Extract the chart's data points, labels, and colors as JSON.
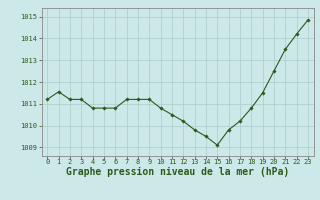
{
  "x": [
    0,
    1,
    2,
    3,
    4,
    5,
    6,
    7,
    8,
    9,
    10,
    11,
    12,
    13,
    14,
    15,
    16,
    17,
    18,
    19,
    20,
    21,
    22,
    23
  ],
  "y": [
    1011.2,
    1011.55,
    1011.2,
    1011.2,
    1010.8,
    1010.8,
    1010.8,
    1011.2,
    1011.2,
    1011.2,
    1010.8,
    1010.5,
    1010.2,
    1009.8,
    1009.5,
    1009.1,
    1009.8,
    1010.2,
    1010.8,
    1011.5,
    1012.5,
    1013.5,
    1014.2,
    1014.85
  ],
  "line_color": "#2d5a1b",
  "marker_color": "#2d5a1b",
  "bg_color": "#cce8e8",
  "grid_color": "#aacccc",
  "title": "Graphe pression niveau de la mer (hPa)",
  "ylim_min": 1008.6,
  "ylim_max": 1015.4,
  "yticks": [
    1009,
    1010,
    1011,
    1012,
    1013,
    1014,
    1015
  ],
  "xticks": [
    0,
    1,
    2,
    3,
    4,
    5,
    6,
    7,
    8,
    9,
    10,
    11,
    12,
    13,
    14,
    15,
    16,
    17,
    18,
    19,
    20,
    21,
    22,
    23
  ],
  "title_fontsize": 7.0,
  "tick_fontsize": 5.0,
  "axis_color": "#888888"
}
